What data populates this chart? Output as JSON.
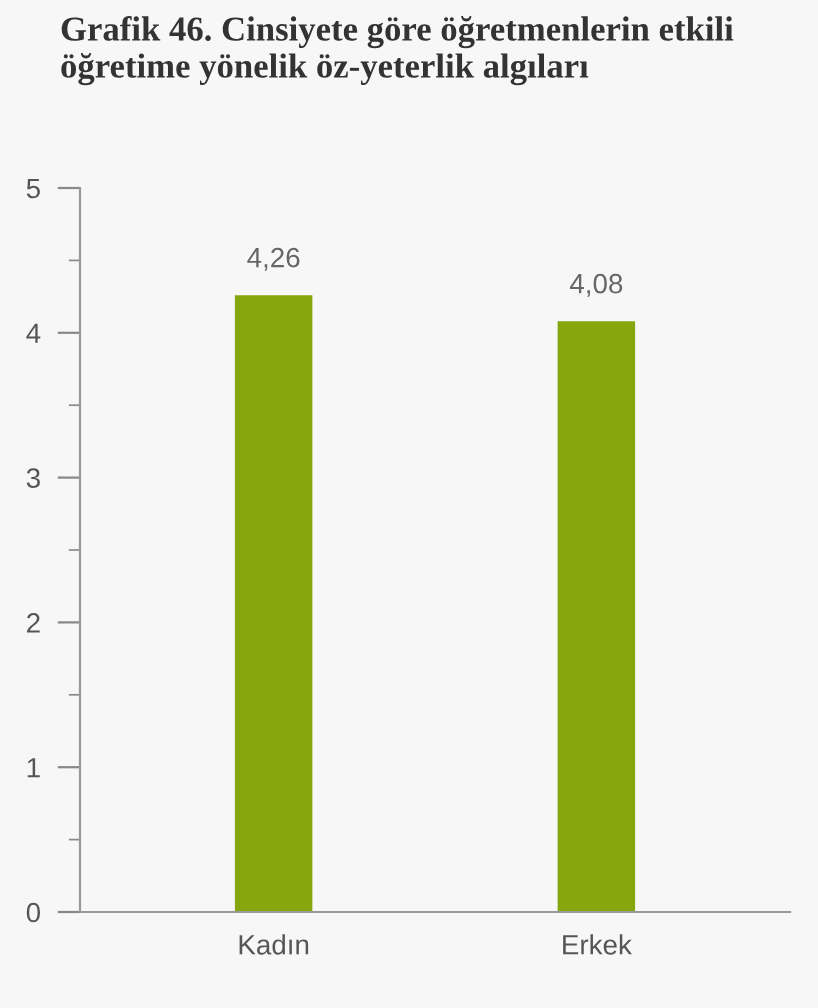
{
  "chart_data": {
    "type": "bar",
    "title": "Grafik 46. Cinsiyete göre öğretmenlerin etkili öğretime yönelik öz-yeterlik algıları",
    "categories": [
      "Kadın",
      "Erkek"
    ],
    "values": [
      4.26,
      4.08
    ],
    "value_labels": [
      "4,26",
      "4,08"
    ],
    "color": "#86a60e",
    "ylim": [
      0,
      5
    ],
    "yticks": [
      0,
      {
        "value": 0.5,
        "label": null
      },
      1,
      {
        "value": 1.5,
        "label": null
      },
      2,
      {
        "value": 2.5,
        "label": null
      },
      3,
      {
        "value": 3.5,
        "label": null
      },
      4,
      {
        "value": 4.5,
        "label": null
      },
      5
    ],
    "grid": false
  }
}
